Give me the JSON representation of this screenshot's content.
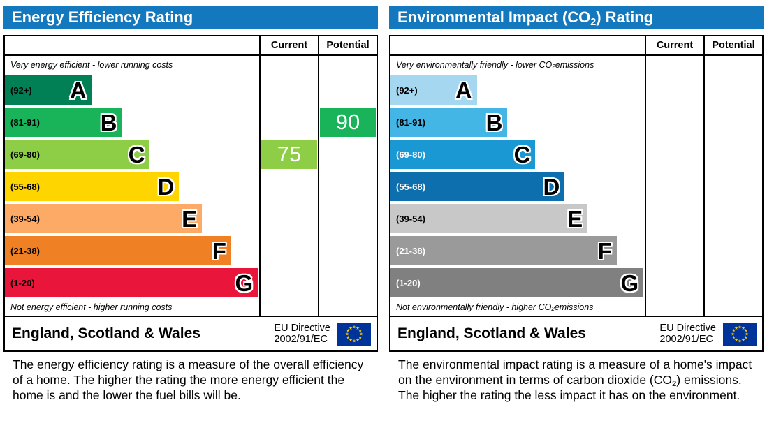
{
  "charts": [
    {
      "header": {
        "title_pre": "Energy Efficiency Rating",
        "title_sub": "",
        "title_post": ""
      },
      "columns": {
        "current": "Current",
        "potential": "Potential"
      },
      "top_note": {
        "pre": "Very energy efficient - lower running costs",
        "sub": "",
        "post": ""
      },
      "bottom_note": {
        "pre": "Not energy efficient - higher running costs",
        "sub": "",
        "post": ""
      },
      "bands": [
        {
          "letter": "A",
          "range": "(92+)",
          "color": "#008054",
          "text_color": "#000000",
          "width_pct": 34
        },
        {
          "letter": "B",
          "range": "(81-91)",
          "color": "#19b459",
          "text_color": "#000000",
          "width_pct": 46
        },
        {
          "letter": "C",
          "range": "(69-80)",
          "color": "#8dce46",
          "text_color": "#000000",
          "width_pct": 57
        },
        {
          "letter": "D",
          "range": "(55-68)",
          "color": "#ffd500",
          "text_color": "#000000",
          "width_pct": 68.5
        },
        {
          "letter": "E",
          "range": "(39-54)",
          "color": "#fcaa65",
          "text_color": "#000000",
          "width_pct": 77.5
        },
        {
          "letter": "F",
          "range": "(21-38)",
          "color": "#ef8023",
          "text_color": "#000000",
          "width_pct": 89
        },
        {
          "letter": "G",
          "range": "(1-20)",
          "color": "#e9153b",
          "text_color": "#000000",
          "width_pct": 99.5
        }
      ],
      "current": {
        "value": "75",
        "band_index": 2,
        "color": "#8dce46"
      },
      "potential": {
        "value": "90",
        "band_index": 1,
        "color": "#19b459"
      },
      "footer": {
        "region": "England, Scotland & Wales",
        "directive_line1": "EU Directive",
        "directive_line2": "2002/91/EC"
      },
      "caption": {
        "pre": "The energy efficiency rating is a measure of the overall efficiency of a home. The higher the rating the more energy efficient the home is and the lower the fuel bills will be.",
        "sub": "",
        "post": ""
      }
    },
    {
      "header": {
        "title_pre": "Environmental Impact (CO",
        "title_sub": "2",
        "title_post": ") Rating"
      },
      "columns": {
        "current": "Current",
        "potential": "Potential"
      },
      "top_note": {
        "pre": "Very environmentally friendly - lower CO",
        "sub": "2",
        "post": " emissions"
      },
      "bottom_note": {
        "pre": "Not environmentally friendly - higher CO",
        "sub": "2",
        "post": " emissions"
      },
      "bands": [
        {
          "letter": "A",
          "range": "(92+)",
          "color": "#a5d8f0",
          "text_color": "#000000",
          "width_pct": 34
        },
        {
          "letter": "B",
          "range": "(81-91)",
          "color": "#43b6e5",
          "text_color": "#000000",
          "width_pct": 46
        },
        {
          "letter": "C",
          "range": "(69-80)",
          "color": "#1a98d3",
          "text_color": "#ffffff",
          "width_pct": 57
        },
        {
          "letter": "D",
          "range": "(55-68)",
          "color": "#0e6fae",
          "text_color": "#ffffff",
          "width_pct": 68.5
        },
        {
          "letter": "E",
          "range": "(39-54)",
          "color": "#c8c8c8",
          "text_color": "#000000",
          "width_pct": 77.5
        },
        {
          "letter": "F",
          "range": "(21-38)",
          "color": "#9a9a9a",
          "text_color": "#ffffff",
          "width_pct": 89
        },
        {
          "letter": "G",
          "range": "(1-20)",
          "color": "#808080",
          "text_color": "#ffffff",
          "width_pct": 99.5
        }
      ],
      "current": null,
      "potential": null,
      "footer": {
        "region": "England, Scotland & Wales",
        "directive_line1": "EU Directive",
        "directive_line2": "2002/91/EC"
      },
      "caption": {
        "pre": "The environmental impact rating is a measure of a home's impact on the environment in terms of carbon dioxide (CO",
        "sub": "2",
        "post": ") emissions. The higher the rating the less impact it has on the environment."
      }
    }
  ],
  "chart_data": [
    {
      "type": "bar",
      "title": "Energy Efficiency Rating",
      "bands": [
        {
          "grade": "A",
          "range": "92+"
        },
        {
          "grade": "B",
          "range": "81-91"
        },
        {
          "grade": "C",
          "range": "69-80"
        },
        {
          "grade": "D",
          "range": "55-68"
        },
        {
          "grade": "E",
          "range": "39-54"
        },
        {
          "grade": "F",
          "range": "21-38"
        },
        {
          "grade": "G",
          "range": "1-20"
        }
      ],
      "current": {
        "value": 75,
        "grade": "C"
      },
      "potential": {
        "value": 90,
        "grade": "B"
      },
      "legend": "none",
      "notes": [
        "Very energy efficient - lower running costs",
        "Not energy efficient - higher running costs"
      ]
    },
    {
      "type": "bar",
      "title": "Environmental Impact (CO2) Rating",
      "bands": [
        {
          "grade": "A",
          "range": "92+"
        },
        {
          "grade": "B",
          "range": "81-91"
        },
        {
          "grade": "C",
          "range": "69-80"
        },
        {
          "grade": "D",
          "range": "55-68"
        },
        {
          "grade": "E",
          "range": "39-54"
        },
        {
          "grade": "F",
          "range": "21-38"
        },
        {
          "grade": "G",
          "range": "1-20"
        }
      ],
      "current": null,
      "potential": null,
      "legend": "none",
      "notes": [
        "Very environmentally friendly - lower CO2 emissions",
        "Not environmentally friendly - higher CO2 emissions"
      ]
    }
  ],
  "colors": {
    "header_blue": "#1478be",
    "eu_flag_blue": "#003399",
    "eu_star_yellow": "#ffcc00"
  }
}
